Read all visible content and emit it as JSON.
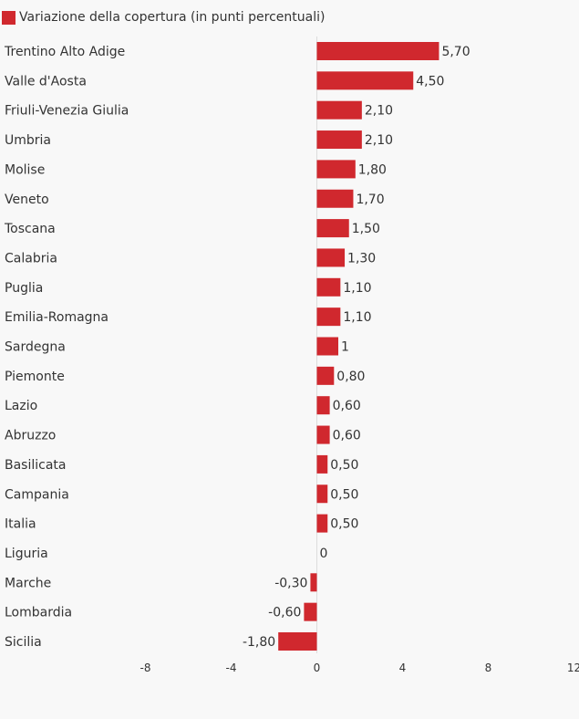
{
  "chart_data": {
    "type": "bar",
    "orientation": "horizontal",
    "legend": {
      "position": "top-left"
    },
    "series": [
      {
        "name": "Variazione della copertura (in punti percentuali)",
        "color": "#d0282e"
      }
    ],
    "categories": [
      "Trentino Alto Adige",
      "Valle d'Aosta",
      "Friuli-Venezia Giulia",
      "Umbria",
      "Molise",
      "Veneto",
      "Toscana",
      "Calabria",
      "Puglia",
      "Emilia-Romagna",
      "Sardegna",
      "Piemonte",
      "Lazio",
      "Abruzzo",
      "Basilicata",
      "Campania",
      "Italia",
      "Liguria",
      "Marche",
      "Lombardia",
      "Sicilia"
    ],
    "values": [
      5.7,
      4.5,
      2.1,
      2.1,
      1.8,
      1.7,
      1.5,
      1.3,
      1.1,
      1.1,
      1,
      0.8,
      0.6,
      0.6,
      0.5,
      0.5,
      0.5,
      0,
      -0.3,
      -0.6,
      -1.8
    ],
    "value_labels": [
      "5,70",
      "4,50",
      "2,10",
      "2,10",
      "1,80",
      "1,70",
      "1,50",
      "1,30",
      "1,10",
      "1,10",
      "1",
      "0,80",
      "0,60",
      "0,60",
      "0,50",
      "0,50",
      "0,50",
      "0",
      "-0,30",
      "-0,60",
      "-1,80"
    ],
    "xlim": [
      -8,
      12
    ],
    "xticks": [
      -8,
      -4,
      0,
      4,
      8,
      12
    ],
    "xtick_labels": [
      "-8",
      "-4",
      "0",
      "4",
      "8",
      "12"
    ],
    "grid": false
  }
}
